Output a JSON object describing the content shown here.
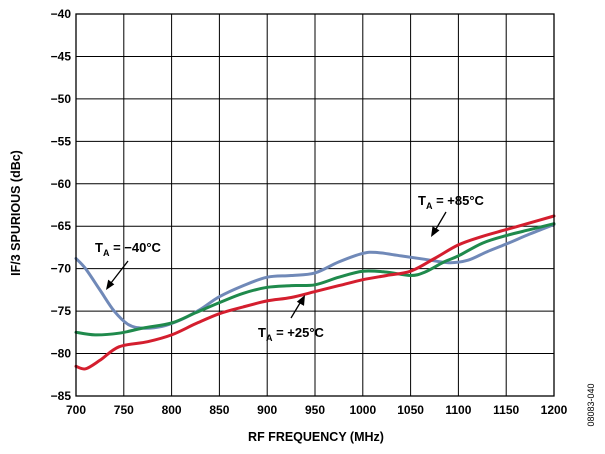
{
  "chart_data": {
    "type": "line",
    "xlabel": "RF FREQUENCY (MHz)",
    "ylabel": "IF/3 SPURIOUS (dBc)",
    "xlim": [
      700,
      1200
    ],
    "ylim": [
      -85,
      -40
    ],
    "xticks": [
      "700",
      "750",
      "800",
      "850",
      "900",
      "950",
      "1000",
      "1050",
      "1100",
      "1150",
      "1200"
    ],
    "yticks": [
      "−40",
      "−45",
      "−50",
      "−55",
      "−60",
      "−65",
      "−70",
      "−75",
      "−80",
      "−85"
    ],
    "grid": true,
    "series": [
      {
        "name": "TA = −40°C",
        "color": "#7089b8",
        "points": [
          [
            700,
            -68.8
          ],
          [
            710,
            -70.0
          ],
          [
            725,
            -72.5
          ],
          [
            740,
            -75.0
          ],
          [
            755,
            -76.6
          ],
          [
            770,
            -77.0
          ],
          [
            790,
            -76.8
          ],
          [
            810,
            -76.0
          ],
          [
            830,
            -74.8
          ],
          [
            850,
            -73.3
          ],
          [
            875,
            -72.0
          ],
          [
            900,
            -71.0
          ],
          [
            925,
            -70.8
          ],
          [
            950,
            -70.5
          ],
          [
            975,
            -69.2
          ],
          [
            1000,
            -68.2
          ],
          [
            1015,
            -68.1
          ],
          [
            1040,
            -68.5
          ],
          [
            1065,
            -68.9
          ],
          [
            1090,
            -69.3
          ],
          [
            1110,
            -69.0
          ],
          [
            1130,
            -68.0
          ],
          [
            1150,
            -67.1
          ],
          [
            1175,
            -65.9
          ],
          [
            1200,
            -64.8
          ]
        ]
      },
      {
        "name": "TA = +25°C",
        "color": "#1f8a4c",
        "points": [
          [
            700,
            -77.5
          ],
          [
            720,
            -77.8
          ],
          [
            745,
            -77.6
          ],
          [
            770,
            -77.0
          ],
          [
            800,
            -76.4
          ],
          [
            825,
            -75.2
          ],
          [
            850,
            -74.0
          ],
          [
            875,
            -72.9
          ],
          [
            900,
            -72.2
          ],
          [
            925,
            -72.0
          ],
          [
            950,
            -71.9
          ],
          [
            975,
            -71.0
          ],
          [
            1000,
            -70.3
          ],
          [
            1025,
            -70.4
          ],
          [
            1050,
            -70.8
          ],
          [
            1065,
            -70.4
          ],
          [
            1085,
            -69.2
          ],
          [
            1100,
            -68.5
          ],
          [
            1125,
            -67.0
          ],
          [
            1150,
            -66.1
          ],
          [
            1175,
            -65.4
          ],
          [
            1200,
            -64.7
          ]
        ]
      },
      {
        "name": "TA = +85°C",
        "color": "#d41e2e",
        "points": [
          [
            700,
            -81.5
          ],
          [
            710,
            -81.8
          ],
          [
            725,
            -80.8
          ],
          [
            745,
            -79.2
          ],
          [
            775,
            -78.6
          ],
          [
            800,
            -77.8
          ],
          [
            825,
            -76.5
          ],
          [
            850,
            -75.3
          ],
          [
            875,
            -74.5
          ],
          [
            900,
            -73.8
          ],
          [
            925,
            -73.4
          ],
          [
            950,
            -72.7
          ],
          [
            975,
            -72.0
          ],
          [
            1000,
            -71.3
          ],
          [
            1025,
            -70.8
          ],
          [
            1050,
            -70.3
          ],
          [
            1075,
            -68.8
          ],
          [
            1100,
            -67.2
          ],
          [
            1125,
            -66.2
          ],
          [
            1150,
            -65.4
          ],
          [
            1175,
            -64.6
          ],
          [
            1200,
            -63.8
          ]
        ]
      }
    ],
    "annotations": [
      {
        "main": "T",
        "sub": "A",
        "rest": " = −40°C"
      },
      {
        "main": "T",
        "sub": "A",
        "rest": " = +25°C"
      },
      {
        "main": "T",
        "sub": "A",
        "rest": " = +85°C"
      }
    ],
    "figure_id": "08083-040"
  }
}
